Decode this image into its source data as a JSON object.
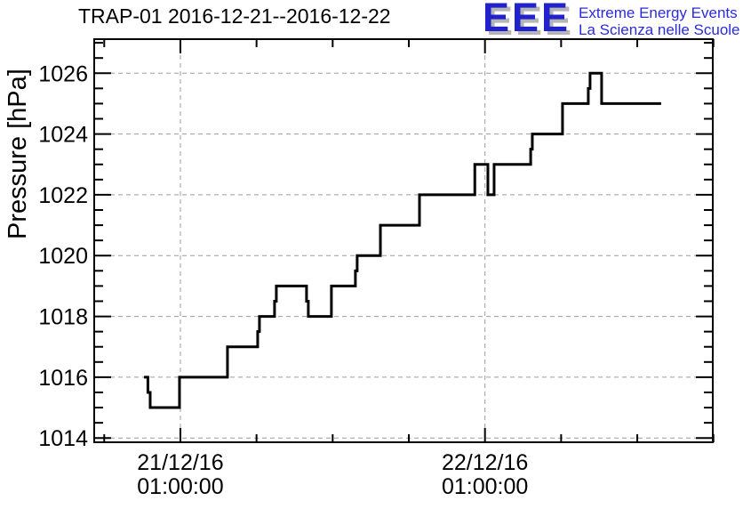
{
  "page": {
    "background": "#ffffff"
  },
  "header": {
    "logo": {
      "acronym": "EEE",
      "tagline_line1": "Extreme Energy Events",
      "tagline_line2": "La Scienza nelle Scuole",
      "acronym_color": "#2222cc",
      "tagline_color": "#2b2bdd",
      "shadow_color": "#b5b5b5"
    }
  },
  "chart_data": {
    "type": "line",
    "subtype": "step",
    "title": "TRAP-01 2016-12-21--2016-12-22",
    "ylabel": "Pressure [hPa]",
    "xlabel": "",
    "line_color": "#000000",
    "grid": true,
    "grid_color": "#9c9c9c",
    "ylim": [
      1013.86,
      1027.12
    ],
    "y_major_ticks": [
      1014,
      1016,
      1018,
      1020,
      1022,
      1024,
      1026
    ],
    "y_minor_step": 0.5,
    "x_unit": "hours relative to 2016-12-21 01:00:00",
    "xlim": [
      -6.79,
      41.95
    ],
    "x_tick_step": 6,
    "x_labeled_ticks": [
      {
        "t": 0,
        "lines": [
          "21/12/16",
          "01:00:00"
        ]
      },
      {
        "t": 24,
        "lines": [
          "22/12/16",
          "01:00:00"
        ]
      }
    ],
    "steps_note": "each entry = [start_time_hours, pressure_hPa] of a flat level; level holds until next entry",
    "steps": [
      [
        -2.87,
        1016
      ],
      [
        -2.56,
        1015.5
      ],
      [
        -2.38,
        1015
      ],
      [
        -0.07,
        1016
      ],
      [
        3.71,
        1017
      ],
      [
        6.09,
        1017.5
      ],
      [
        6.23,
        1018
      ],
      [
        7.42,
        1018.5
      ],
      [
        7.56,
        1019
      ],
      [
        9.94,
        1018.5
      ],
      [
        10.08,
        1018
      ],
      [
        11.9,
        1019
      ],
      [
        13.79,
        1019.5
      ],
      [
        13.93,
        1020
      ],
      [
        15.76,
        1021
      ],
      [
        18.84,
        1022
      ],
      [
        23.2,
        1023
      ],
      [
        24.23,
        1022
      ],
      [
        24.72,
        1023
      ],
      [
        27.6,
        1023.5
      ],
      [
        27.73,
        1024
      ],
      [
        30.11,
        1025
      ],
      [
        32.14,
        1025.5
      ],
      [
        32.28,
        1026
      ],
      [
        33.19,
        1025
      ]
    ],
    "end_t": 37.88
  }
}
